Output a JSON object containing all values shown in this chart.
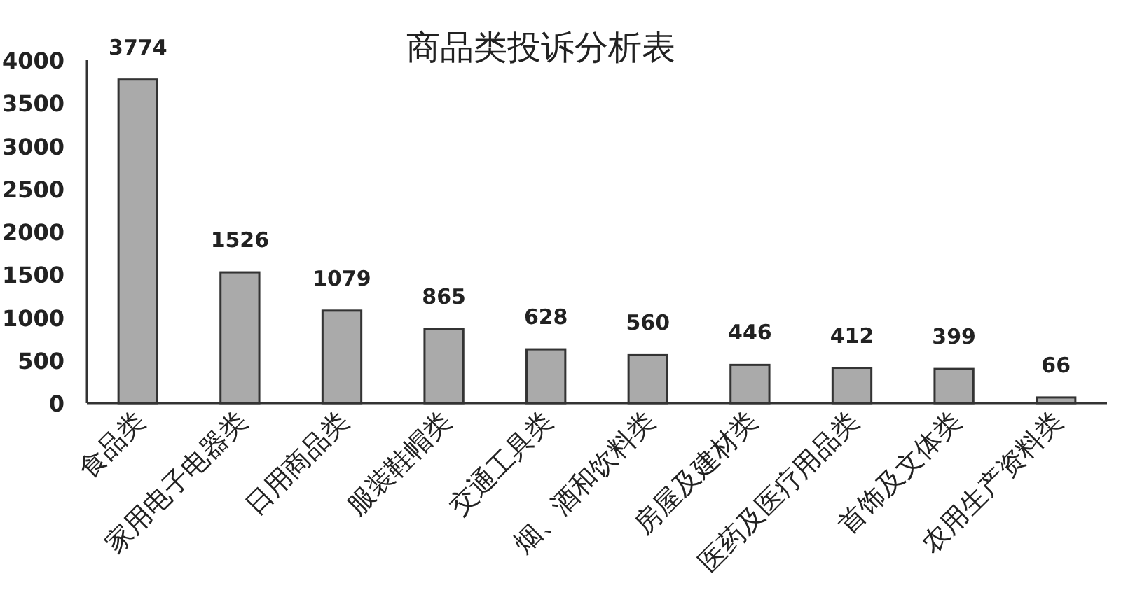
{
  "chart_data": {
    "type": "bar",
    "title": "商品类投诉分析表",
    "categories": [
      "食品类",
      "家用电子电器类",
      "日用商品类",
      "服装鞋帽类",
      "交通工具类",
      "烟、酒和饮料类",
      "房屋及建材类",
      "医药及医疗用品类",
      "首饰及文体类",
      "农用生产资料类"
    ],
    "values": [
      3774,
      1526,
      1079,
      865,
      628,
      560,
      446,
      412,
      399,
      66
    ],
    "color": "#aaaaaa",
    "ylim": [
      0,
      4000
    ],
    "yticks": [
      0,
      500,
      1000,
      1500,
      2000,
      2500,
      3000,
      3500,
      4000
    ],
    "data_labels": true
  }
}
